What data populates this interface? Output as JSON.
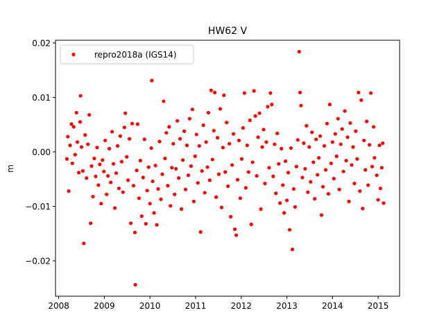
{
  "chart_data": {
    "type": "scatter",
    "title": "HW62 V",
    "xlabel": "",
    "ylabel": "m",
    "xlim": [
      2007.93,
      2015.47
    ],
    "ylim": [
      -0.0265,
      0.0205
    ],
    "xticks": [
      {
        "value": 2008,
        "label": "2008"
      },
      {
        "value": 2009,
        "label": "2009"
      },
      {
        "value": 2010,
        "label": "2010"
      },
      {
        "value": 2011,
        "label": "2011"
      },
      {
        "value": 2012,
        "label": "2012"
      },
      {
        "value": 2013,
        "label": "2013"
      },
      {
        "value": 2014,
        "label": "2014"
      },
      {
        "value": 2015,
        "label": "2015"
      }
    ],
    "yticks": [
      {
        "value": 0.02,
        "label": "0.02"
      },
      {
        "value": 0.01,
        "label": "0.01"
      },
      {
        "value": 0.0,
        "label": "0.00"
      },
      {
        "value": -0.01,
        "label": "−0.01"
      },
      {
        "value": -0.02,
        "label": "−0.02"
      }
    ],
    "grid": false,
    "legend": {
      "position": "top-left",
      "entries": [
        "repro2018a (IGS14)"
      ]
    },
    "series": [
      {
        "name": "repro2018a (IGS14)",
        "color": "#ff0000",
        "marker": "circle",
        "points": [
          [
            2008.18,
            -0.0013
          ],
          [
            2008.2,
            0.0028
          ],
          [
            2008.22,
            -0.0072
          ],
          [
            2008.25,
            0.0012
          ],
          [
            2008.28,
            0.0051
          ],
          [
            2008.3,
            -0.0021
          ],
          [
            2008.33,
            0.0046
          ],
          [
            2008.36,
            -0.0005
          ],
          [
            2008.39,
            0.0072
          ],
          [
            2008.41,
            0.0018
          ],
          [
            2008.44,
            -0.0038
          ],
          [
            2008.47,
            0.0055
          ],
          [
            2008.48,
            0.0103
          ],
          [
            2008.5,
            0.0009
          ],
          [
            2008.53,
            -0.0035
          ],
          [
            2008.55,
            -0.0168
          ],
          [
            2008.58,
            0.0031
          ],
          [
            2008.61,
            -0.0048
          ],
          [
            2008.64,
            0.0014
          ],
          [
            2008.67,
            0.0068
          ],
          [
            2008.7,
            -0.0131
          ],
          [
            2008.72,
            -0.0026
          ],
          [
            2008.75,
            -0.0082
          ],
          [
            2008.78,
            -0.0012
          ],
          [
            2008.81,
            -0.0045
          ],
          [
            2008.84,
            0.0008
          ],
          [
            2008.87,
            -0.0061
          ],
          [
            2008.9,
            -0.0023
          ],
          [
            2008.93,
            -0.0095
          ],
          [
            2008.96,
            -0.0015
          ],
          [
            2008.99,
            -0.0036
          ],
          [
            2009.02,
            0.0021
          ],
          [
            2009.05,
            -0.0078
          ],
          [
            2009.08,
            -0.0044
          ],
          [
            2009.11,
            0.0006
          ],
          [
            2009.14,
            -0.0056
          ],
          [
            2009.17,
            0.0037
          ],
          [
            2009.2,
            -0.0022
          ],
          [
            2009.23,
            -0.0103
          ],
          [
            2009.26,
            -0.0039
          ],
          [
            2009.29,
            0.0011
          ],
          [
            2009.32,
            -0.0067
          ],
          [
            2009.35,
            0.0029
          ],
          [
            2009.38,
            -0.0018
          ],
          [
            2009.41,
            -0.0074
          ],
          [
            2009.44,
            0.0045
          ],
          [
            2009.46,
            0.0071
          ],
          [
            2009.49,
            -0.0009
          ],
          [
            2009.52,
            -0.0052
          ],
          [
            2009.55,
            0.0024
          ],
          [
            2009.58,
            -0.0131
          ],
          [
            2009.61,
            0.0052
          ],
          [
            2009.64,
            -0.0062
          ],
          [
            2009.67,
            -0.0148
          ],
          [
            2009.68,
            -0.0244
          ],
          [
            2009.71,
            -0.0034
          ],
          [
            2009.73,
            0.0051
          ],
          [
            2009.76,
            -0.0085
          ],
          [
            2009.79,
            -0.0016
          ],
          [
            2009.82,
            -0.0118
          ],
          [
            2009.85,
            -0.0047
          ],
          [
            2009.88,
            0.0023
          ],
          [
            2009.91,
            -0.0132
          ],
          [
            2009.94,
            -0.0071
          ],
          [
            2009.97,
            -0.0028
          ],
          [
            2010.0,
            -0.0095
          ],
          [
            2010.03,
            0.0007
          ],
          [
            2010.04,
            0.0131
          ],
          [
            2010.06,
            -0.0054
          ],
          [
            2010.09,
            -0.0112
          ],
          [
            2010.12,
            -0.0025
          ],
          [
            2010.15,
            -0.0134
          ],
          [
            2010.18,
            -0.0068
          ],
          [
            2010.21,
            0.0019
          ],
          [
            2010.24,
            -0.0087
          ],
          [
            2010.27,
            -0.0041
          ],
          [
            2010.3,
            0.0093
          ],
          [
            2010.33,
            -0.0012
          ],
          [
            2010.36,
            0.0035
          ],
          [
            2010.39,
            -0.0062
          ],
          [
            2010.42,
            0.0046
          ],
          [
            2010.45,
            -0.0099
          ],
          [
            2010.48,
            -0.0029
          ],
          [
            2010.51,
            0.0015
          ],
          [
            2010.54,
            -0.0078
          ],
          [
            2010.57,
            -0.0031
          ],
          [
            2010.6,
            0.0057
          ],
          [
            2010.63,
            -0.0048
          ],
          [
            2010.66,
            0.0024
          ],
          [
            2010.69,
            -0.0105
          ],
          [
            2010.72,
            -0.0015
          ],
          [
            2010.75,
            0.0038
          ],
          [
            2010.78,
            -0.0069
          ],
          [
            2010.81,
            0.0012
          ],
          [
            2010.84,
            -0.0043
          ],
          [
            2010.87,
            0.0061
          ],
          [
            2010.9,
            -0.0026
          ],
          [
            2010.93,
            0.0078
          ],
          [
            2010.96,
            -0.0091
          ],
          [
            2010.99,
            -0.0008
          ],
          [
            2011.02,
            0.0032
          ],
          [
            2011.05,
            -0.0057
          ],
          [
            2011.08,
            0.0011
          ],
          [
            2011.11,
            -0.0147
          ],
          [
            2011.14,
            -0.0035
          ],
          [
            2011.17,
            0.0049
          ],
          [
            2011.2,
            -0.0075
          ],
          [
            2011.23,
            0.0018
          ],
          [
            2011.26,
            -0.0028
          ],
          [
            2011.28,
            0.0072
          ],
          [
            2011.31,
            -0.0052
          ],
          [
            2011.34,
            0.0113
          ],
          [
            2011.37,
            -0.0014
          ],
          [
            2011.4,
            0.0039
          ],
          [
            2011.42,
            0.0109
          ],
          [
            2011.45,
            -0.0083
          ],
          [
            2011.48,
            0.0026
          ],
          [
            2011.51,
            -0.0041
          ],
          [
            2011.54,
            0.0079
          ],
          [
            2011.57,
            -0.0102
          ],
          [
            2011.6,
            0.0008
          ],
          [
            2011.62,
            0.0104
          ],
          [
            2011.65,
            -0.0037
          ],
          [
            2011.68,
            0.0054
          ],
          [
            2011.71,
            -0.0063
          ],
          [
            2011.74,
            0.0015
          ],
          [
            2011.77,
            -0.0119
          ],
          [
            2011.8,
            -0.0024
          ],
          [
            2011.83,
            0.0033
          ],
          [
            2011.86,
            -0.0142
          ],
          [
            2011.89,
            -0.0153
          ],
          [
            2011.92,
            -0.0051
          ],
          [
            2011.95,
            0.0021
          ],
          [
            2011.98,
            -0.0085
          ],
          [
            2012.01,
            -0.0013
          ],
          [
            2012.04,
            0.0044
          ],
          [
            2012.07,
            0.0108
          ],
          [
            2012.1,
            -0.0066
          ],
          [
            2012.13,
            0.0012
          ],
          [
            2012.16,
            -0.0037
          ],
          [
            2012.19,
            0.0058
          ],
          [
            2012.22,
            -0.0133
          ],
          [
            2012.25,
            -0.0019
          ],
          [
            2012.28,
            0.0112
          ],
          [
            2012.31,
            0.0066
          ],
          [
            2012.34,
            -0.0044
          ],
          [
            2012.37,
            0.0027
          ],
          [
            2012.4,
            0.0071
          ],
          [
            2012.43,
            -0.0105
          ],
          [
            2012.46,
            0.0009
          ],
          [
            2012.49,
            0.0041
          ],
          [
            2012.52,
            -0.0058
          ],
          [
            2012.55,
            0.0018
          ],
          [
            2012.58,
            0.0083
          ],
          [
            2012.61,
            -0.0029
          ],
          [
            2012.64,
            0.0108
          ],
          [
            2012.67,
            0.0087
          ],
          [
            2012.7,
            -0.0045
          ],
          [
            2012.73,
            0.0014
          ],
          [
            2012.76,
            -0.0076
          ],
          [
            2012.79,
            0.0034
          ],
          [
            2012.82,
            -0.0022
          ],
          [
            2012.85,
            -0.0094
          ],
          [
            2012.88,
            0.0006
          ],
          [
            2012.91,
            -0.0061
          ],
          [
            2012.94,
            -0.0112
          ],
          [
            2012.97,
            -0.0017
          ],
          [
            2013.0,
            -0.0089
          ],
          [
            2013.03,
            -0.0038
          ],
          [
            2013.06,
            -0.0143
          ],
          [
            2013.09,
            0.0007
          ],
          [
            2013.12,
            -0.0179
          ],
          [
            2013.15,
            -0.0068
          ],
          [
            2013.18,
            -0.0101
          ],
          [
            2013.21,
            -0.0027
          ],
          [
            2013.24,
            0.0022
          ],
          [
            2013.27,
            0.0184
          ],
          [
            2013.29,
            0.0109
          ],
          [
            2013.31,
            0.0085
          ],
          [
            2013.34,
            -0.0047
          ],
          [
            2013.37,
            0.0016
          ],
          [
            2013.4,
            -0.0031
          ],
          [
            2013.43,
            0.0048
          ],
          [
            2013.46,
            -0.0074
          ],
          [
            2013.49,
            0.0009
          ],
          [
            2013.52,
            -0.0055
          ],
          [
            2013.55,
            0.0036
          ],
          [
            2013.58,
            -0.0019
          ],
          [
            2013.61,
            -0.0086
          ],
          [
            2013.64,
            0.0023
          ],
          [
            2013.67,
            -0.0042
          ],
          [
            2013.7,
            -0.0011
          ],
          [
            2013.73,
            0.0029
          ],
          [
            2013.76,
            -0.0116
          ],
          [
            2013.79,
            -0.0064
          ],
          [
            2013.82,
            0.0011
          ],
          [
            2013.85,
            -0.0033
          ],
          [
            2013.88,
            0.0052
          ],
          [
            2013.91,
            -0.0077
          ],
          [
            2013.94,
            0.0087
          ],
          [
            2013.97,
            -0.0021
          ],
          [
            2014.0,
            0.0018
          ],
          [
            2014.03,
            -0.0049
          ],
          [
            2014.06,
            0.0033
          ],
          [
            2014.09,
            -0.0008
          ],
          [
            2014.12,
            0.0061
          ],
          [
            2014.15,
            -0.0069
          ],
          [
            2014.18,
            0.0014
          ],
          [
            2014.21,
            0.0042
          ],
          [
            2014.24,
            -0.0036
          ],
          [
            2014.27,
            0.0075
          ],
          [
            2014.3,
            -0.0016
          ],
          [
            2014.33,
            0.0027
          ],
          [
            2014.36,
            -0.0091
          ],
          [
            2014.39,
            0.0053
          ],
          [
            2014.42,
            -0.0024
          ],
          [
            2014.45,
            0.0009
          ],
          [
            2014.48,
            -0.0058
          ],
          [
            2014.51,
            0.0038
          ],
          [
            2014.54,
            -0.0013
          ],
          [
            2014.57,
            0.0109
          ],
          [
            2014.6,
            -0.0072
          ],
          [
            2014.63,
            0.0095
          ],
          [
            2014.66,
            -0.0104
          ],
          [
            2014.69,
            0.0021
          ],
          [
            2014.72,
            -0.0033
          ],
          [
            2014.75,
            0.0056
          ],
          [
            2014.78,
            -0.0061
          ],
          [
            2014.81,
            0.0013
          ],
          [
            2014.84,
            0.0108
          ],
          [
            2014.87,
            -0.0027
          ],
          [
            2014.9,
            0.0046
          ],
          [
            2014.92,
            -0.0011
          ],
          [
            2014.97,
            -0.0043
          ],
          [
            2015.0,
            -0.0088
          ],
          [
            2015.03,
            0.0012
          ],
          [
            2015.05,
            -0.0067
          ],
          [
            2015.08,
            -0.0029
          ],
          [
            2015.1,
            0.0016
          ],
          [
            2015.12,
            -0.0094
          ]
        ]
      }
    ]
  }
}
